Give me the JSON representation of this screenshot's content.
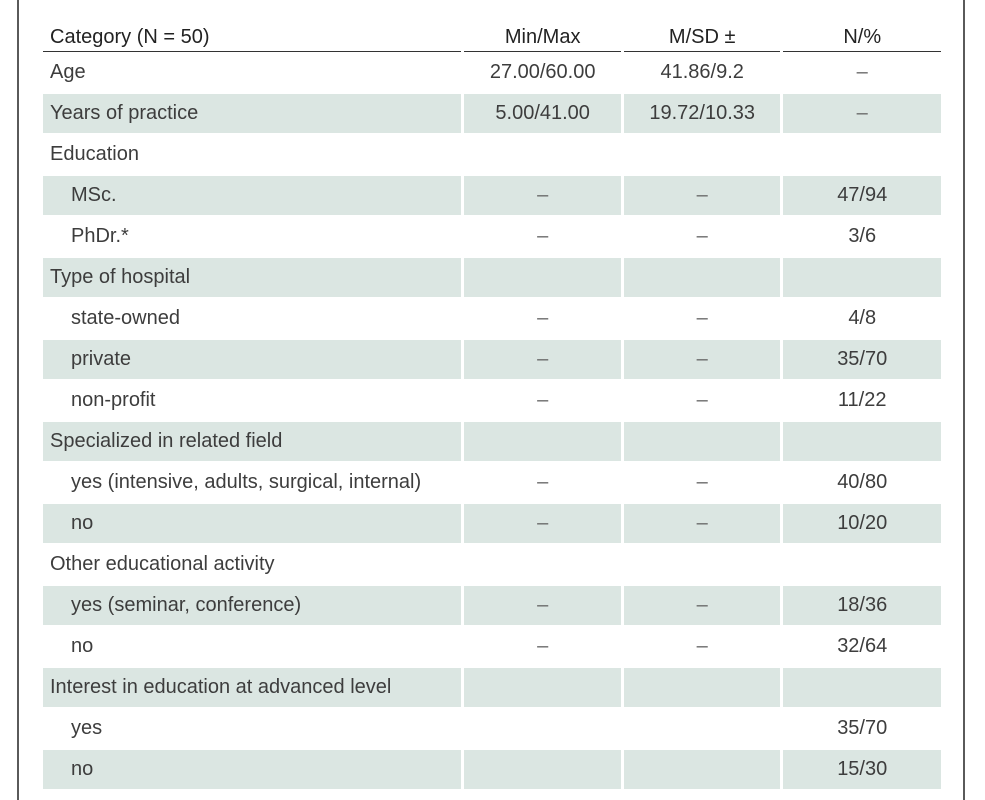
{
  "table": {
    "headers": [
      "Category (N = 50)",
      "Min/Max",
      "M/SD ±",
      "N/%"
    ],
    "rows": [
      {
        "label": "Age",
        "indent": false,
        "shaded": false,
        "values": [
          "27.00/60.00",
          "41.86/9.2",
          "–"
        ]
      },
      {
        "label": "Years of practice",
        "indent": false,
        "shaded": true,
        "values": [
          "5.00/41.00",
          "19.72/10.33",
          "–"
        ]
      },
      {
        "label": "Education",
        "indent": false,
        "shaded": false,
        "values": [
          "",
          "",
          ""
        ]
      },
      {
        "label": "MSc.",
        "indent": true,
        "shaded": true,
        "values": [
          "–",
          "–",
          "47/94"
        ]
      },
      {
        "label": "PhDr.*",
        "indent": true,
        "shaded": false,
        "values": [
          "–",
          "–",
          "3/6"
        ]
      },
      {
        "label": "Type of hospital",
        "indent": false,
        "shaded": true,
        "values": [
          "",
          "",
          ""
        ]
      },
      {
        "label": "state-owned",
        "indent": true,
        "shaded": false,
        "values": [
          "–",
          "–",
          "4/8"
        ]
      },
      {
        "label": "private",
        "indent": true,
        "shaded": true,
        "values": [
          "–",
          "–",
          "35/70"
        ]
      },
      {
        "label": "non-profit",
        "indent": true,
        "shaded": false,
        "values": [
          "–",
          "–",
          "11/22"
        ]
      },
      {
        "label": "Specialized in related field",
        "indent": false,
        "shaded": true,
        "values": [
          "",
          "",
          ""
        ]
      },
      {
        "label": "yes (intensive, adults, surgical, internal)",
        "indent": true,
        "shaded": false,
        "values": [
          "–",
          "–",
          "40/80"
        ]
      },
      {
        "label": "no",
        "indent": true,
        "shaded": true,
        "values": [
          "–",
          "–",
          "10/20"
        ]
      },
      {
        "label": "Other educational activity",
        "indent": false,
        "shaded": false,
        "values": [
          "",
          "",
          ""
        ]
      },
      {
        "label": "yes (seminar, conference)",
        "indent": true,
        "shaded": true,
        "values": [
          "–",
          "–",
          "18/36"
        ]
      },
      {
        "label": "no",
        "indent": true,
        "shaded": false,
        "values": [
          "–",
          "–",
          "32/64"
        ]
      },
      {
        "label": "Interest in education at advanced level",
        "indent": false,
        "shaded": true,
        "values": [
          "",
          "",
          ""
        ]
      },
      {
        "label": "yes",
        "indent": true,
        "shaded": false,
        "values": [
          "",
          "",
          "35/70"
        ]
      },
      {
        "label": "no",
        "indent": true,
        "shaded": true,
        "values": [
          "",
          "",
          "15/30"
        ]
      }
    ]
  },
  "colors": {
    "row_shade": "#dbe6e2",
    "rule": "#333333",
    "frame": "#5a5a5a"
  }
}
